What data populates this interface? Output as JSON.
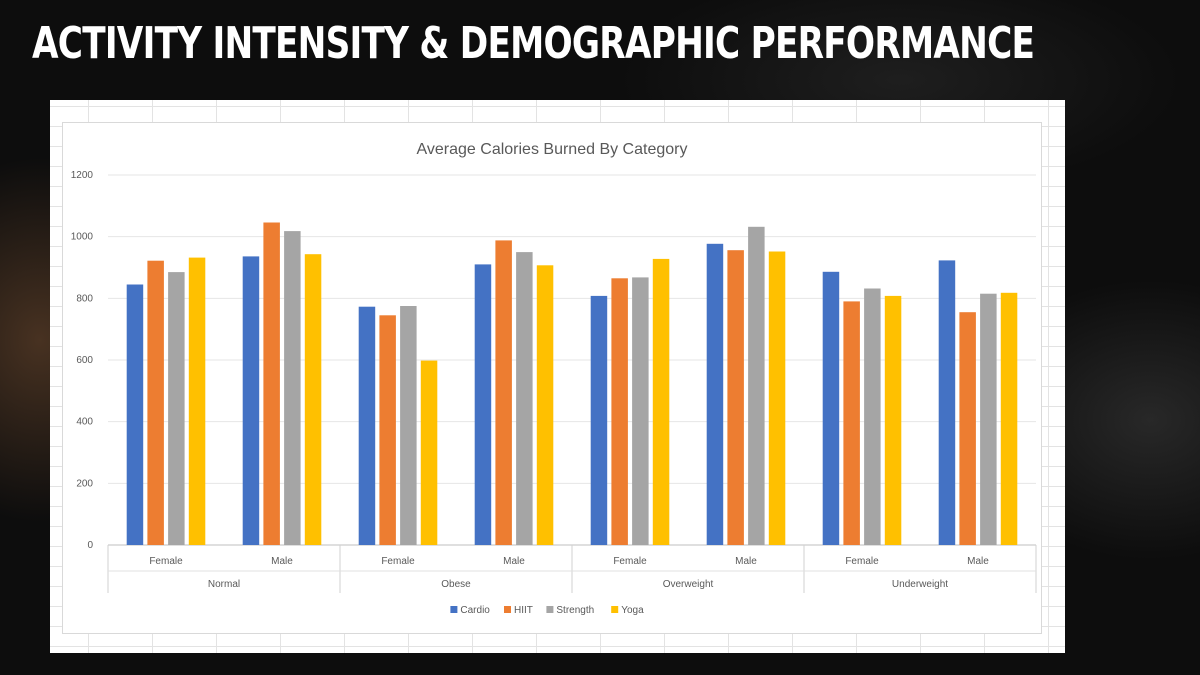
{
  "slide": {
    "title": "ACTIVITY INTENSITY & DEMOGRAPHIC PERFORMANCE"
  },
  "chart_data": {
    "type": "bar",
    "title": "Average Calories Burned By Category",
    "xlabel": "",
    "ylabel": "",
    "ylim": [
      0,
      1200
    ],
    "yticks": [
      0,
      200,
      400,
      600,
      800,
      1000,
      1200
    ],
    "grid": true,
    "legend": "bottom",
    "groups": [
      "Normal",
      "Obese",
      "Overweight",
      "Underweight"
    ],
    "categories": [
      "Female",
      "Male",
      "Female",
      "Male",
      "Female",
      "Male",
      "Female",
      "Male"
    ],
    "series": [
      {
        "name": "Cardio",
        "color": "#4472C4",
        "values": [
          845,
          936,
          773,
          910,
          808,
          977,
          886,
          923
        ]
      },
      {
        "name": "HIIT",
        "color": "#ED7D31",
        "values": [
          922,
          1046,
          745,
          988,
          865,
          956,
          790,
          755
        ]
      },
      {
        "name": "Strength",
        "color": "#A5A5A5",
        "values": [
          885,
          1018,
          775,
          950,
          868,
          1032,
          832,
          815
        ]
      },
      {
        "name": "Yoga",
        "color": "#FFC000",
        "values": [
          932,
          943,
          598,
          907,
          928,
          952,
          808,
          818
        ]
      }
    ]
  }
}
